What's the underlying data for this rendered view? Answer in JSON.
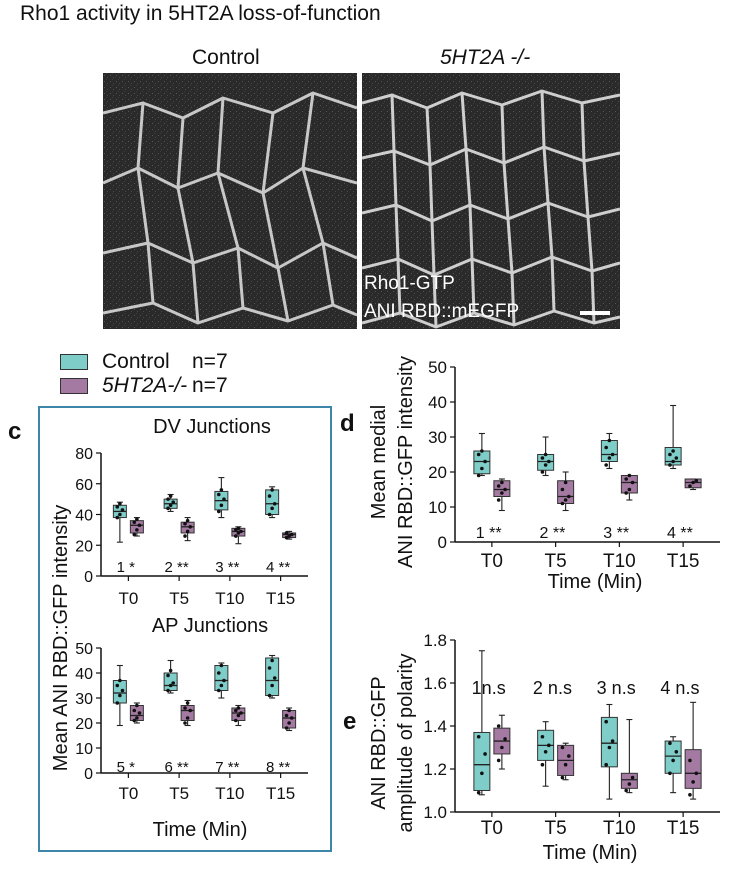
{
  "figure": {
    "title": "Rho1 activity in 5HT2A loss-of-function",
    "conditions": [
      "Control",
      "5HT2A -/-"
    ],
    "overlay_line1": "Rho1-GTP",
    "overlay_line2": "ANI RBD::mEGFP",
    "legend": {
      "control_label": "Control",
      "control_n": "n=7",
      "mutant_label": "5HT2A-/-",
      "mutant_n": "n=7"
    },
    "letters": {
      "c": "c",
      "d": "d",
      "e": "e"
    }
  },
  "colors": {
    "control": "#7ecdc8",
    "mutant": "#a57aa2",
    "box": "#3d86a9"
  },
  "chart_data": [
    {
      "id": "c-dv",
      "type": "box",
      "title": "DV Junctions",
      "ylabel": "Mean ANI RBD::GFP intensity",
      "xlabel": "",
      "ylim": [
        0,
        80
      ],
      "yticks": [
        "0",
        "20",
        "40",
        "60",
        "80"
      ],
      "categories": [
        "T0",
        "T5",
        "T10",
        "T15"
      ],
      "annotations": [
        "1 *",
        "2 **",
        "3 **",
        "4 **"
      ],
      "series": [
        {
          "name": "Control",
          "boxes": [
            {
              "min": 22,
              "q1": 38,
              "median": 42,
              "q3": 46,
              "max": 48,
              "points": [
                38,
                40,
                43,
                45,
                47
              ]
            },
            {
              "min": 42,
              "q1": 44,
              "median": 47,
              "q3": 50,
              "max": 53,
              "points": [
                44,
                46,
                48,
                50,
                52
              ]
            },
            {
              "min": 38,
              "q1": 43,
              "median": 49,
              "q3": 55,
              "max": 64,
              "points": [
                42,
                46,
                50,
                53,
                56
              ]
            },
            {
              "min": 38,
              "q1": 40,
              "median": 47,
              "q3": 56,
              "max": 58,
              "points": [
                40,
                44,
                47,
                52,
                56
              ]
            }
          ]
        },
        {
          "name": "5HT2A-/-",
          "boxes": [
            {
              "min": 26,
              "q1": 28,
              "median": 33,
              "q3": 36,
              "max": 38,
              "points": [
                27,
                30,
                33,
                35,
                37
              ]
            },
            {
              "min": 23,
              "q1": 28,
              "median": 32,
              "q3": 35,
              "max": 38,
              "points": [
                26,
                29,
                32,
                34,
                36
              ]
            },
            {
              "min": 21,
              "q1": 26,
              "median": 29,
              "q3": 31,
              "max": 32,
              "points": [
                26,
                28,
                29,
                30,
                31
              ]
            },
            {
              "min": 24,
              "q1": 25,
              "median": 27,
              "q3": 28,
              "max": 29,
              "points": [
                25,
                26,
                27,
                28
              ]
            }
          ]
        }
      ]
    },
    {
      "id": "c-ap",
      "type": "box",
      "title": "AP Junctions",
      "ylabel": "",
      "xlabel": "Time (Min)",
      "ylim": [
        0,
        50
      ],
      "yticks": [
        "0",
        "10",
        "20",
        "30",
        "40",
        "50"
      ],
      "categories": [
        "T0",
        "T5",
        "T10",
        "T15"
      ],
      "annotations": [
        "5 *",
        "6 **",
        "7 **",
        "8 **"
      ],
      "series": [
        {
          "name": "Control",
          "boxes": [
            {
              "min": 19,
              "q1": 28,
              "median": 32,
              "q3": 37,
              "max": 43,
              "points": [
                28,
                31,
                33,
                35,
                37
              ]
            },
            {
              "min": 32,
              "q1": 33,
              "median": 35,
              "q3": 40,
              "max": 45,
              "points": [
                33,
                35,
                36,
                39,
                41
              ]
            },
            {
              "min": 30,
              "q1": 33,
              "median": 37,
              "q3": 43,
              "max": 44,
              "points": [
                33,
                35,
                37,
                40,
                43
              ]
            },
            {
              "min": 30,
              "q1": 31,
              "median": 37,
              "q3": 46,
              "max": 47,
              "points": [
                31,
                35,
                38,
                42,
                45
              ]
            }
          ]
        },
        {
          "name": "5HT2A-/-",
          "boxes": [
            {
              "min": 20,
              "q1": 21,
              "median": 23,
              "q3": 27,
              "max": 28,
              "points": [
                21,
                22,
                24,
                25,
                27
              ]
            },
            {
              "min": 19,
              "q1": 21,
              "median": 25,
              "q3": 27,
              "max": 29,
              "points": [
                20,
                22,
                25,
                26,
                28
              ]
            },
            {
              "min": 19,
              "q1": 21,
              "median": 24,
              "q3": 26,
              "max": 27,
              "points": [
                21,
                23,
                24,
                25,
                26
              ]
            },
            {
              "min": 17,
              "q1": 18,
              "median": 22,
              "q3": 25,
              "max": 26,
              "points": [
                18,
                20,
                22,
                23,
                25
              ]
            }
          ]
        }
      ]
    },
    {
      "id": "d",
      "type": "box",
      "title": "",
      "ylabel_line1": "Mean medial",
      "ylabel_line2": "ANI RBD::GFP intensity",
      "xlabel": "Time (Min)",
      "ylim": [
        0,
        50
      ],
      "yticks": [
        "0",
        "10",
        "20",
        "30",
        "40",
        "50"
      ],
      "categories": [
        "T0",
        "T5",
        "T10",
        "T15"
      ],
      "annotations": [
        "1 **",
        "2 **",
        "3 **",
        "4 **"
      ],
      "series": [
        {
          "name": "Control",
          "boxes": [
            {
              "min": 19,
              "q1": 19.5,
              "median": 23,
              "q3": 26,
              "max": 31,
              "points": [
                19,
                21,
                23,
                25,
                26
              ]
            },
            {
              "min": 19,
              "q1": 20.5,
              "median": 23,
              "q3": 25,
              "max": 30,
              "points": [
                20,
                22,
                23,
                24,
                25
              ]
            },
            {
              "min": 21,
              "q1": 23,
              "median": 25,
              "q3": 29,
              "max": 31,
              "points": [
                22,
                24,
                25,
                27,
                29
              ]
            },
            {
              "min": 21,
              "q1": 22,
              "median": 23,
              "q3": 27,
              "max": 39,
              "points": [
                22,
                23,
                24,
                25,
                26
              ]
            }
          ]
        },
        {
          "name": "5HT2A-/-",
          "boxes": [
            {
              "min": 9,
              "q1": 13,
              "median": 15,
              "q3": 17.5,
              "max": 18,
              "points": [
                12,
                14,
                15,
                16,
                17
              ]
            },
            {
              "min": 9,
              "q1": 11,
              "median": 13,
              "q3": 17.5,
              "max": 20,
              "points": [
                11,
                12,
                13,
                15,
                17
              ]
            },
            {
              "min": 12,
              "q1": 14,
              "median": 17,
              "q3": 19,
              "max": 19,
              "points": [
                14,
                15,
                17,
                18,
                19
              ]
            },
            {
              "min": 15,
              "q1": 15.5,
              "median": 17,
              "q3": 18,
              "max": 18,
              "points": [
                16,
                17,
                17.5
              ]
            }
          ]
        }
      ]
    },
    {
      "id": "e",
      "type": "box",
      "title": "",
      "ylabel_line1": "ANI RBD::GFP",
      "ylabel_line2": "amplitude of polarity",
      "xlabel": "Time (Min)",
      "ylim": [
        1.0,
        1.8
      ],
      "yticks": [
        "1.0",
        "1.2",
        "1.4",
        "1.6",
        "1.8"
      ],
      "categories": [
        "T0",
        "T5",
        "T10",
        "T15"
      ],
      "annotations": [
        "1n.s",
        "2 n.s",
        "3 n.s",
        "4 n.s"
      ],
      "series": [
        {
          "name": "Control",
          "boxes": [
            {
              "min": 1.08,
              "q1": 1.1,
              "median": 1.22,
              "q3": 1.37,
              "max": 1.75,
              "points": [
                1.09,
                1.18,
                1.27,
                1.35
              ]
            },
            {
              "min": 1.12,
              "q1": 1.24,
              "median": 1.31,
              "q3": 1.38,
              "max": 1.42,
              "points": [
                1.22,
                1.28,
                1.31,
                1.35
              ]
            },
            {
              "min": 1.06,
              "q1": 1.21,
              "median": 1.32,
              "q3": 1.44,
              "max": 1.5,
              "points": [
                1.22,
                1.3,
                1.33,
                1.42
              ]
            },
            {
              "min": 1.09,
              "q1": 1.18,
              "median": 1.26,
              "q3": 1.33,
              "max": 1.35,
              "points": [
                1.18,
                1.24,
                1.28,
                1.32
              ]
            }
          ]
        },
        {
          "name": "5HT2A-/-",
          "boxes": [
            {
              "min": 1.2,
              "q1": 1.27,
              "median": 1.33,
              "q3": 1.39,
              "max": 1.45,
              "points": [
                1.24,
                1.3,
                1.34,
                1.4
              ]
            },
            {
              "min": 1.15,
              "q1": 1.17,
              "median": 1.24,
              "q3": 1.31,
              "max": 1.32,
              "points": [
                1.16,
                1.22,
                1.26,
                1.3
              ]
            },
            {
              "min": 1.09,
              "q1": 1.11,
              "median": 1.15,
              "q3": 1.18,
              "max": 1.43,
              "points": [
                1.1,
                1.13,
                1.16
              ]
            },
            {
              "min": 1.06,
              "q1": 1.11,
              "median": 1.18,
              "q3": 1.29,
              "max": 1.51,
              "points": [
                1.08,
                1.14,
                1.18,
                1.24
              ]
            }
          ]
        }
      ]
    }
  ]
}
